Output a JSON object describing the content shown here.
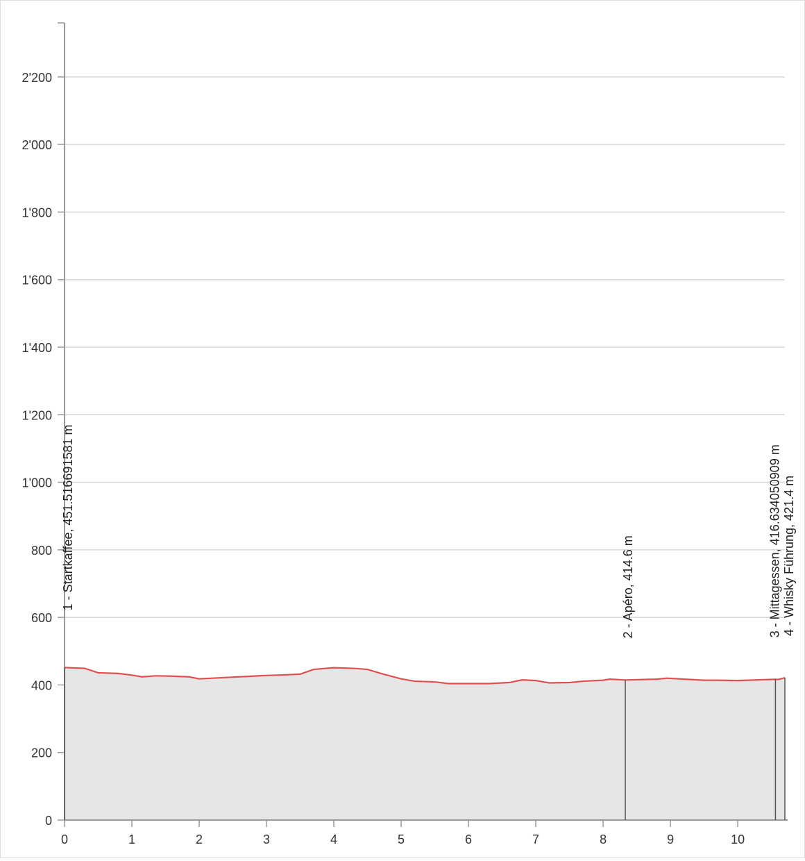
{
  "chart_data": {
    "type": "area",
    "title": "",
    "xlabel": "",
    "ylabel": "",
    "xlim": [
      0,
      10.7
    ],
    "ylim": [
      0,
      2360
    ],
    "x_ticks": [
      0,
      1,
      2,
      3,
      4,
      5,
      6,
      7,
      8,
      9,
      10
    ],
    "x_tick_labels": [
      "0",
      "1",
      "2",
      "3",
      "4",
      "5",
      "6",
      "7",
      "8",
      "9",
      "10"
    ],
    "y_ticks": [
      0,
      200,
      400,
      600,
      800,
      1000,
      1200,
      1400,
      1600,
      1800,
      2000,
      2200
    ],
    "y_tick_labels": [
      "0",
      "200",
      "400",
      "600",
      "800",
      "1'000",
      "1'200",
      "1'400",
      "1'600",
      "1'800",
      "2'000",
      "2'200"
    ],
    "grid": true,
    "line_color": "#e05050",
    "fill_color": "#e6e6e6",
    "series": [
      {
        "x": [
          0,
          0.3,
          0.5,
          0.8,
          1.0,
          1.15,
          1.35,
          1.6,
          1.85,
          2.0,
          2.3,
          2.7,
          3.0,
          3.3,
          3.5,
          3.7,
          4.0,
          4.3,
          4.5,
          4.7,
          5.0,
          5.2,
          5.5,
          5.7,
          6.0,
          6.3,
          6.6,
          6.8,
          7.0,
          7.2,
          7.5,
          7.7,
          8.0,
          8.1,
          8.33,
          8.6,
          8.8,
          8.95,
          9.2,
          9.5,
          9.7,
          10.0,
          10.3,
          10.56,
          10.6,
          10.7
        ],
        "y": [
          451.5,
          449,
          436,
          434,
          429,
          424,
          427,
          426,
          424,
          418,
          421,
          425,
          428,
          430,
          432,
          446,
          451,
          449,
          446,
          434,
          418,
          411,
          409,
          404,
          404,
          404,
          407,
          415,
          413,
          406,
          407,
          411,
          414,
          417,
          414.6,
          416,
          417,
          420,
          417,
          414,
          414,
          413,
          415,
          416.6,
          416,
          421.4
        ]
      }
    ],
    "markers": [
      {
        "x": 0,
        "elevation": 451.5,
        "label": "1 - Startkaffee, 451.516691581 m"
      },
      {
        "x": 8.33,
        "elevation": 414.6,
        "label": "2 - Apéro, 414.6 m"
      },
      {
        "x": 10.56,
        "elevation": 416.6,
        "label": "3 - Mittagessen, 416.634050909 m"
      },
      {
        "x": 10.7,
        "elevation": 421.4,
        "label": "4 - Whisky Führung, 421.4 m"
      }
    ]
  }
}
